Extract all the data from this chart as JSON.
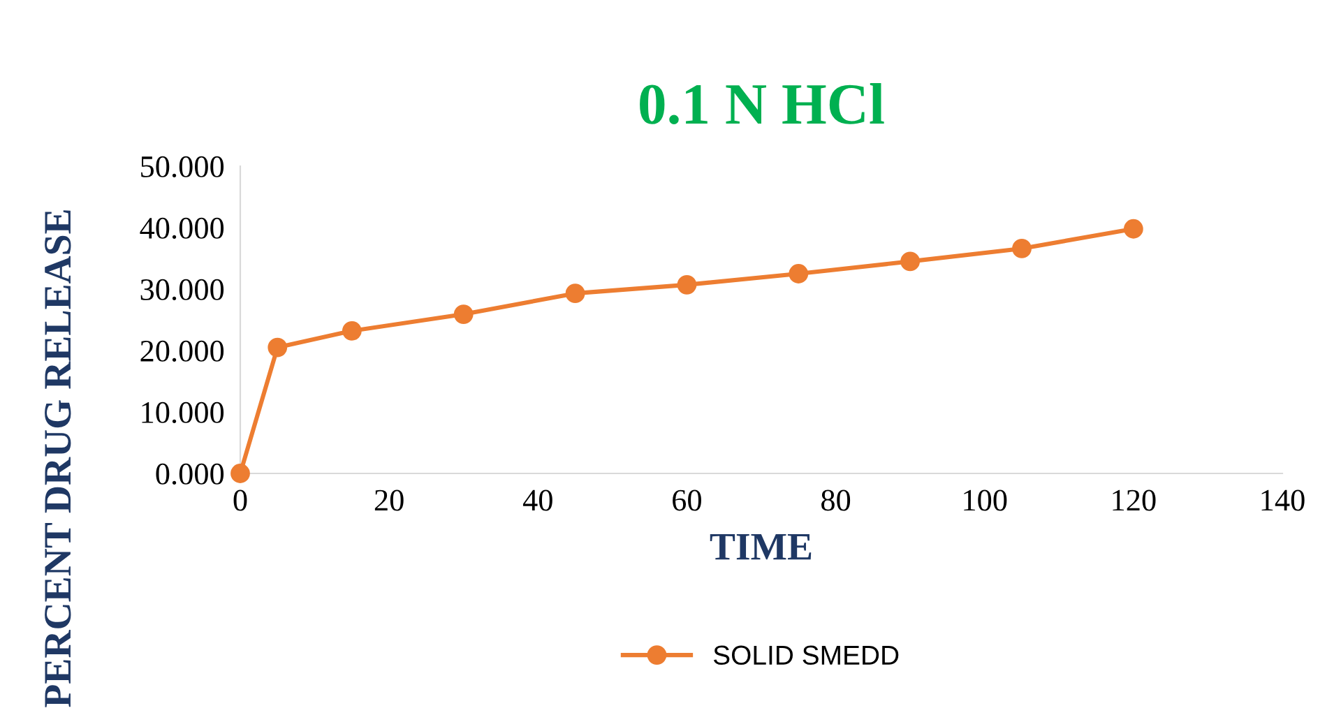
{
  "chart_data": {
    "type": "line",
    "title": "0.1 N HCl",
    "xlabel": "TIME",
    "ylabel": "PERCENT DRUG RELEASE",
    "x": [
      0,
      5,
      15,
      30,
      45,
      60,
      75,
      90,
      105,
      120
    ],
    "series": [
      {
        "name": "SOLID SMEDD",
        "color": "#ed7d31",
        "values": [
          0.0,
          20.5,
          23.2,
          25.9,
          29.3,
          30.7,
          32.5,
          34.5,
          36.6,
          39.8
        ]
      }
    ],
    "xlim": [
      0,
      140
    ],
    "xticks": [
      0,
      20,
      40,
      60,
      80,
      100,
      120,
      140
    ],
    "ylim": [
      0,
      50
    ],
    "yticks": [
      {
        "value": 0,
        "label": "0.000"
      },
      {
        "value": 10,
        "label": "10.000"
      },
      {
        "value": 20,
        "label": "20.000"
      },
      {
        "value": 30,
        "label": "30.000"
      },
      {
        "value": 40,
        "label": "40.000"
      },
      {
        "value": 50,
        "label": "50.000"
      }
    ],
    "grid": false,
    "legend": "bottom",
    "marker": "circle",
    "line_style": "solid"
  }
}
